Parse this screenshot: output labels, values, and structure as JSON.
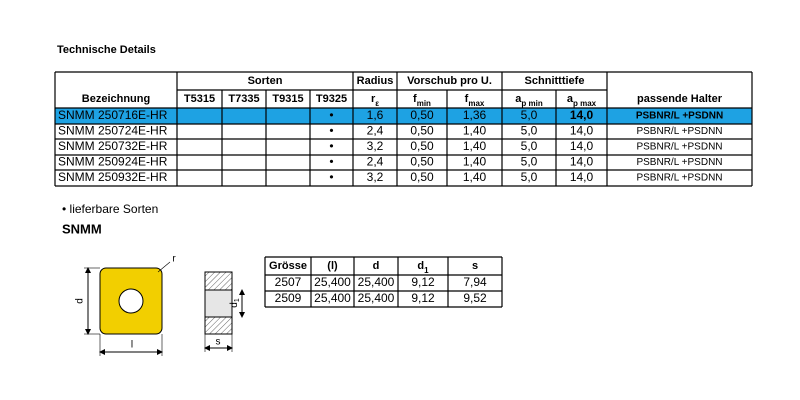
{
  "title": "Technische Details",
  "main_table": {
    "header_top": {
      "sorten": "Sorten",
      "radius": "Radius",
      "feed": "Vorschub pro U.",
      "depth": "Schnitttiefe"
    },
    "header": {
      "designation": "Bezeichnung",
      "t5315": "T5315",
      "t7335": "T7335",
      "t9315": "T9315",
      "t9325": "T9325",
      "radius": {
        "main": "r",
        "sub": "ε"
      },
      "f_min": {
        "main": "f",
        "sub": "min"
      },
      "f_max": {
        "main": "f",
        "sub": "max"
      },
      "ap_min": {
        "main": "a",
        "sub": "p min"
      },
      "ap_max": {
        "main": "a",
        "sub": "p max"
      },
      "holder": "passende Halter"
    },
    "rows": [
      {
        "designation": "SNMM 250716E-HR",
        "t9325": "•",
        "radius": "1,6",
        "f_min": "0,50",
        "f_max": "1,36",
        "ap_min": "5,0",
        "ap_max": "14,0",
        "holder": "PSBNR/L +PSDNN",
        "highlighted": true
      },
      {
        "designation": "SNMM 250724E-HR",
        "t9325": "•",
        "radius": "2,4",
        "f_min": "0,50",
        "f_max": "1,40",
        "ap_min": "5,0",
        "ap_max": "14,0",
        "holder": "PSBNR/L +PSDNN"
      },
      {
        "designation": "SNMM 250732E-HR",
        "t9325": "•",
        "radius": "3,2",
        "f_min": "0,50",
        "f_max": "1,40",
        "ap_min": "5,0",
        "ap_max": "14,0",
        "holder": "PSBNR/L +PSDNN"
      },
      {
        "designation": "SNMM 250924E-HR",
        "t9325": "•",
        "radius": "2,4",
        "f_min": "0,50",
        "f_max": "1,40",
        "ap_min": "5,0",
        "ap_max": "14,0",
        "holder": "PSBNR/L +PSDNN"
      },
      {
        "designation": "SNMM 250932E-HR",
        "t9325": "•",
        "radius": "3,2",
        "f_min": "0,50",
        "f_max": "1,40",
        "ap_min": "5,0",
        "ap_max": "14,0",
        "holder": "PSBNR/L +PSDNN"
      }
    ]
  },
  "legend_note": "• lieferbare Sorten",
  "section_title": "SNMM",
  "drawing": {
    "d": "d",
    "l": "l",
    "r": "r",
    "d1": {
      "main": "d",
      "sub": "1"
    },
    "s": "s"
  },
  "size_table": {
    "header": [
      "Grösse",
      "(l)",
      "d",
      {
        "main": "d",
        "sub": "1"
      },
      "s"
    ],
    "rows": [
      [
        "2507",
        "25,400",
        "25,400",
        "9,12",
        "7,94"
      ],
      [
        "2509",
        "25,400",
        "25,400",
        "9,12",
        "9,52"
      ]
    ]
  }
}
